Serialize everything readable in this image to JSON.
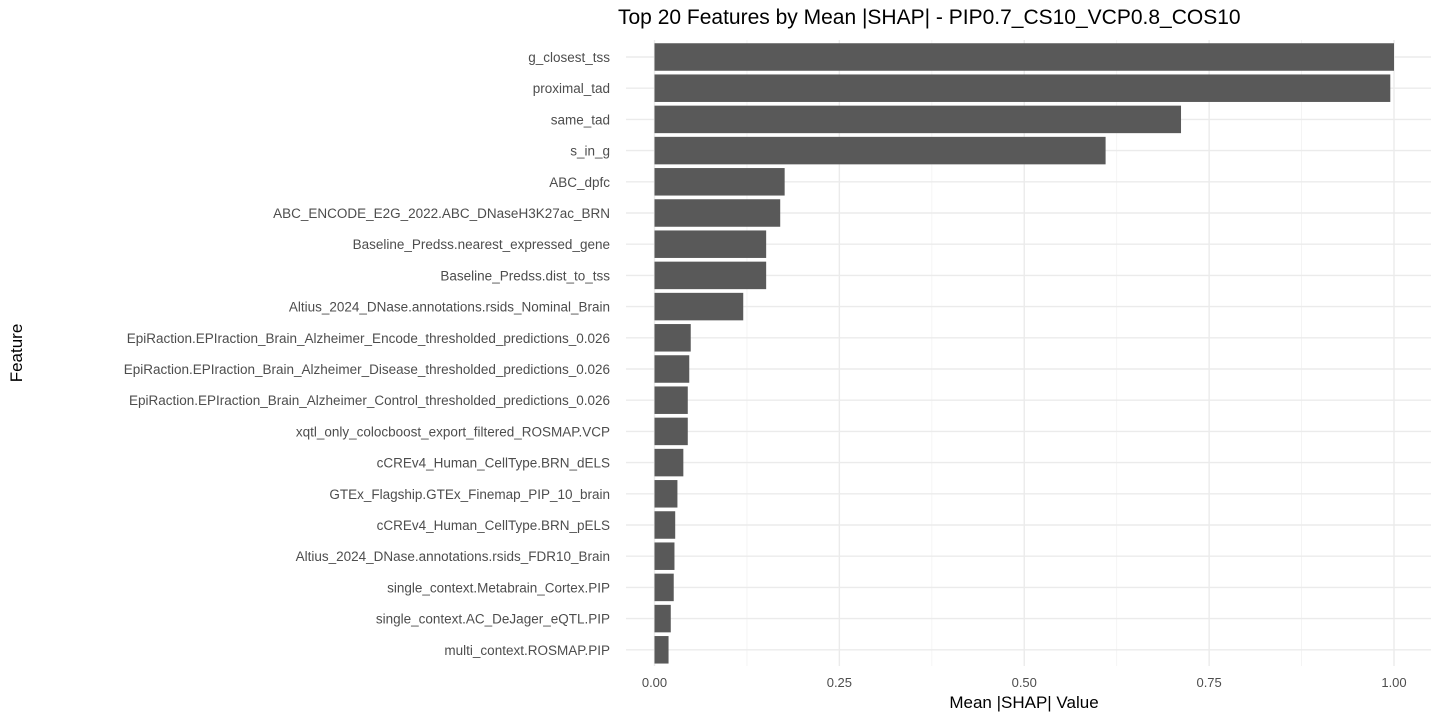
{
  "chart_data": {
    "type": "bar",
    "orientation": "horizontal",
    "title": "Top 20 Features by Mean |SHAP| - PIP0.7_CS10_VCP0.8_COS10",
    "xlabel": "Mean |SHAP| Value",
    "ylabel": "Feature",
    "xlim": [
      0,
      1.05
    ],
    "x_ticks": [
      0.0,
      0.25,
      0.5,
      0.75,
      1.0
    ],
    "x_tick_labels": [
      "0.00",
      "0.25",
      "0.50",
      "0.75",
      "1.00"
    ],
    "grid": true,
    "legend": "none",
    "bar_color": "#595959",
    "categories": [
      "g_closest_tss",
      "proximal_tad",
      "same_tad",
      "s_in_g",
      "ABC_dpfc",
      "ABC_ENCODE_E2G_2022.ABC_DNaseH3K27ac_BRN",
      "Baseline_Predss.nearest_expressed_gene",
      "Baseline_Predss.dist_to_tss",
      "Altius_2024_DNase.annotations.rsids_Nominal_Brain",
      "EpiRaction.EPIraction_Brain_Alzheimer_Encode_thresholded_predictions_0.026",
      "EpiRaction.EPIraction_Brain_Alzheimer_Disease_thresholded_predictions_0.026",
      "EpiRaction.EPIraction_Brain_Alzheimer_Control_thresholded_predictions_0.026",
      "xqtl_only_colocboost_export_filtered_ROSMAP.VCP",
      "cCREv4_Human_CellType.BRN_dELS",
      "GTEx_Flagship.GTEx_Finemap_PIP_10_brain",
      "cCREv4_Human_CellType.BRN_pELS",
      "Altius_2024_DNase.annotations.rsids_FDR10_Brain",
      "single_context.Metabrain_Cortex.PIP",
      "single_context.AC_DeJager_eQTL.PIP",
      "multi_context.ROSMAP.PIP"
    ],
    "values": [
      1.0,
      0.995,
      0.712,
      0.61,
      0.176,
      0.17,
      0.151,
      0.151,
      0.12,
      0.049,
      0.047,
      0.045,
      0.045,
      0.039,
      0.031,
      0.028,
      0.027,
      0.026,
      0.022,
      0.019
    ]
  }
}
